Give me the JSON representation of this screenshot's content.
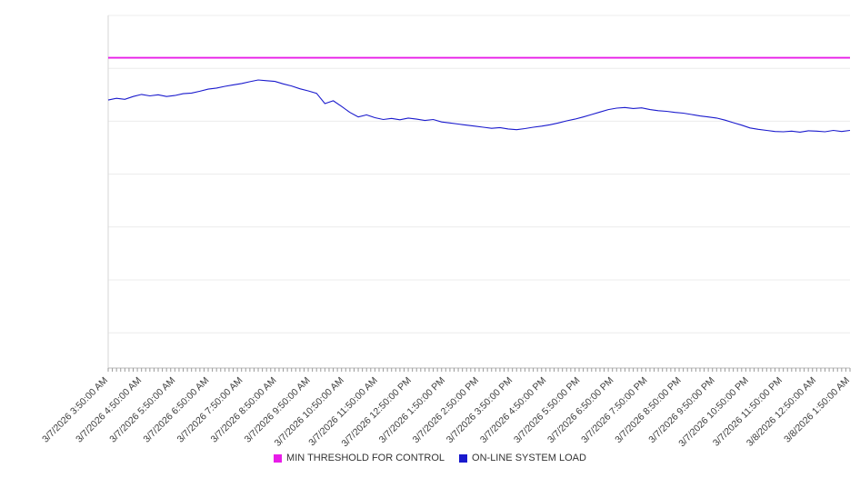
{
  "page": {
    "background": "#ffffff"
  },
  "chart_data": {
    "type": "line",
    "title": "",
    "xlabel": "",
    "ylabel": "",
    "legend_position": "bottom",
    "grid": true,
    "y_axis_labels_visible": false,
    "ylim": [
      0,
      100
    ],
    "y_gridlines": [
      10,
      25,
      40,
      55,
      70,
      85,
      100
    ],
    "x_categories": [
      "3/7/2026 3:50:00 AM",
      "3/7/2026 4:50:00 AM",
      "3/7/2026 5:50:00 AM",
      "3/7/2026 6:50:00 AM",
      "3/7/2026 7:50:00 AM",
      "3/7/2026 8:50:00 AM",
      "3/7/2026 9:50:00 AM",
      "3/7/2026 10:50:00 AM",
      "3/7/2026 11:50:00 AM",
      "3/7/2026 12:50:00 PM",
      "3/7/2026 1:50:00 PM",
      "3/7/2026 2:50:00 PM",
      "3/7/2026 3:50:00 PM",
      "3/7/2026 4:50:00 PM",
      "3/7/2026 5:50:00 PM",
      "3/7/2026 6:50:00 PM",
      "3/7/2026 7:50:00 PM",
      "3/7/2026 8:50:00 PM",
      "3/7/2026 9:50:00 PM",
      "3/7/2026 10:50:00 PM",
      "3/7/2026 11:50:00 PM",
      "3/8/2026 12:50:00 AM",
      "3/8/2026 1:50:00 AM"
    ],
    "threshold_series": {
      "name": "MIN THRESHOLD FOR CONTROL",
      "color": "#e81ce8",
      "value": 88
    },
    "series": [
      {
        "name": "ON-LINE SYSTEM LOAD",
        "color": "#1a1acd",
        "points_per_hour": 4,
        "values": [
          76.0,
          76.5,
          76.2,
          77.0,
          77.6,
          77.2,
          77.5,
          77.0,
          77.3,
          77.8,
          78.0,
          78.5,
          79.1,
          79.4,
          79.9,
          80.3,
          80.7,
          81.2,
          81.7,
          81.5,
          81.3,
          80.6,
          80.0,
          79.2,
          78.6,
          77.9,
          75.0,
          75.8,
          74.2,
          72.5,
          71.2,
          71.8,
          71.0,
          70.5,
          70.8,
          70.4,
          70.9,
          70.6,
          70.2,
          70.5,
          69.8,
          69.5,
          69.2,
          68.9,
          68.6,
          68.3,
          68.0,
          68.2,
          67.8,
          67.6,
          67.9,
          68.3,
          68.6,
          69.0,
          69.5,
          70.1,
          70.6,
          71.2,
          71.9,
          72.6,
          73.3,
          73.7,
          73.9,
          73.6,
          73.8,
          73.3,
          73.0,
          72.8,
          72.5,
          72.3,
          71.9,
          71.5,
          71.2,
          70.9,
          70.3,
          69.6,
          68.9,
          68.1,
          67.7,
          67.4,
          67.1,
          67.0,
          67.2,
          66.9,
          67.3,
          67.2,
          67.0,
          67.4,
          67.1,
          67.4
        ]
      }
    ]
  }
}
